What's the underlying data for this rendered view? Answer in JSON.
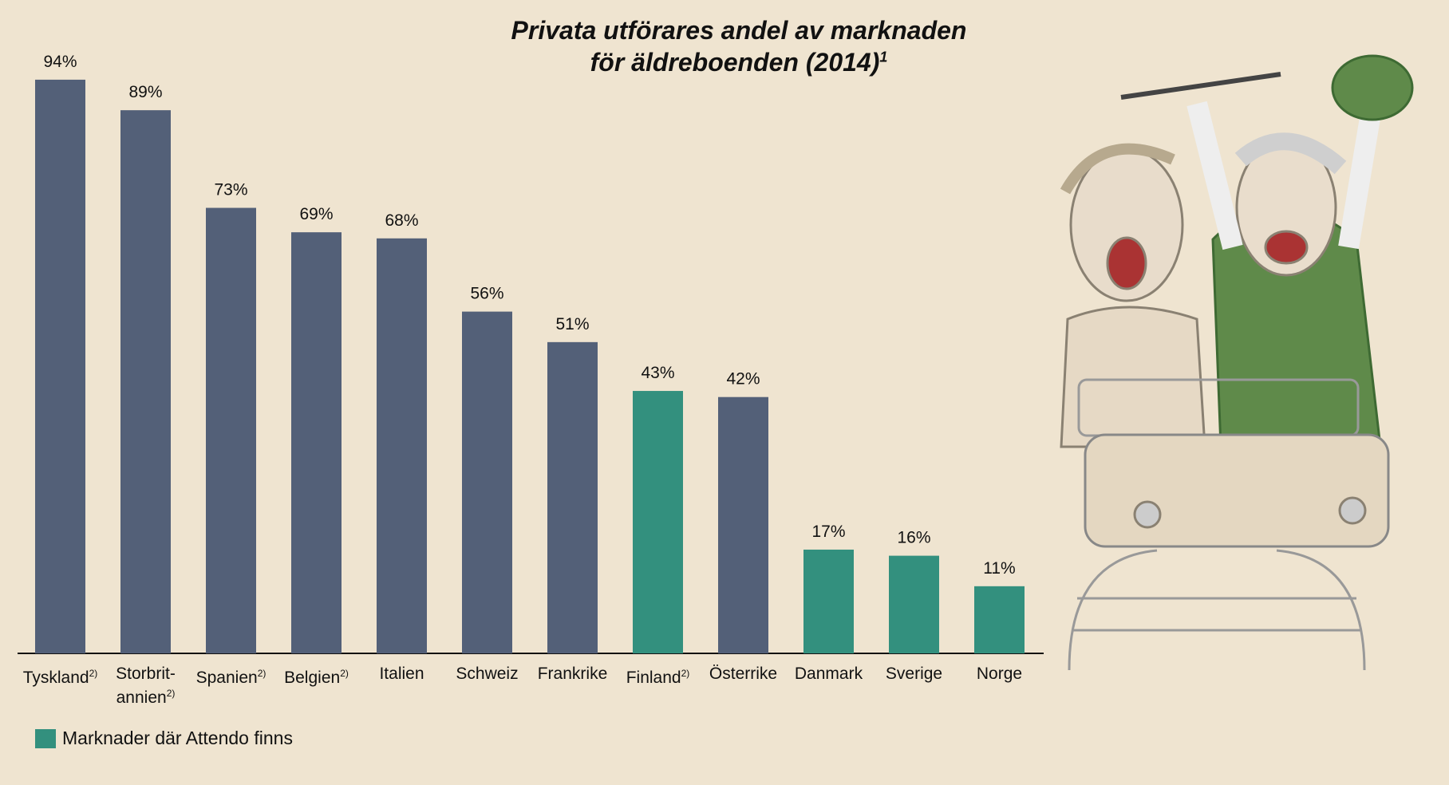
{
  "chart_data": {
    "type": "bar",
    "title": [
      "Privata utförares andel av marknaden",
      "för äldreboenden (2014)"
    ],
    "title_note": "1",
    "categories": [
      "Tyskland",
      "Storbrit-annien",
      "Spanien",
      "Belgien",
      "Italien",
      "Schweiz",
      "Frankrike",
      "Finland",
      "Österrike",
      "Danmark",
      "Sverige",
      "Norge"
    ],
    "category_notes": [
      "2)",
      "2)",
      "2)",
      "2)",
      null,
      null,
      null,
      "2)",
      null,
      null,
      null,
      null
    ],
    "values": [
      94,
      89,
      73,
      69,
      68,
      56,
      51,
      43,
      42,
      17,
      16,
      11
    ],
    "value_labels": [
      "94%",
      "89%",
      "73%",
      "69%",
      "68%",
      "56%",
      "51%",
      "43%",
      "42%",
      "17%",
      "16%",
      "11%"
    ],
    "colors": [
      "#536078",
      "#536078",
      "#536078",
      "#536078",
      "#536078",
      "#536078",
      "#536078",
      "#33907e",
      "#536078",
      "#33907e",
      "#33907e",
      "#33907e"
    ],
    "legend": {
      "label": "Marknader där Attendo finns",
      "color": "#33907e"
    }
  }
}
